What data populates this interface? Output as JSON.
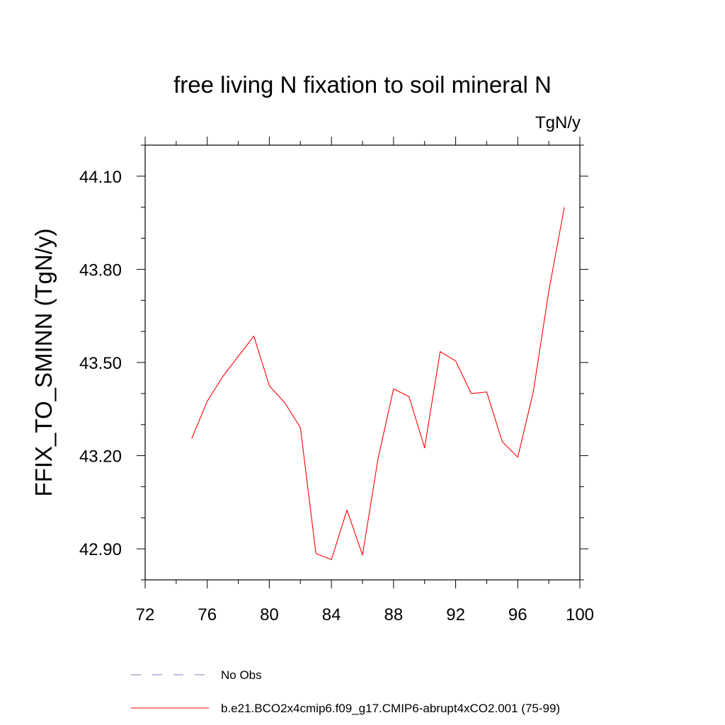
{
  "chart_data": {
    "type": "line",
    "title": "free living N fixation to soil mineral N",
    "units_label": "TgN/y",
    "ylabel": "FFIX_TO_SMINN  (TgN/y)",
    "xlabel": "",
    "xlim": [
      72,
      100
    ],
    "ylim": [
      42.8,
      44.2
    ],
    "x_ticks": [
      72,
      76,
      80,
      84,
      88,
      92,
      96,
      100
    ],
    "x_tick_labels": [
      "72",
      "76",
      "80",
      "84",
      "88",
      "92",
      "96",
      "100"
    ],
    "y_ticks": [
      42.9,
      43.2,
      43.5,
      43.8,
      44.1
    ],
    "y_tick_labels": [
      "42.90",
      "43.20",
      "43.50",
      "43.80",
      "44.10"
    ],
    "grid": false,
    "legend_position": "bottom-left",
    "series": [
      {
        "name": "b.e21.BCO2x4cmip6.f09_g17.CMIP6-abrupt4xCO2.001 (75-99)",
        "color": "#ff0000",
        "style": "solid",
        "x": [
          75,
          76,
          77,
          78,
          79,
          80,
          81,
          82,
          83,
          84,
          85,
          86,
          87,
          88,
          89,
          90,
          91,
          92,
          93,
          94,
          95,
          96,
          97,
          98,
          99
        ],
        "y": [
          43.255,
          43.375,
          43.455,
          43.52,
          43.585,
          43.425,
          43.37,
          43.29,
          42.885,
          42.865,
          43.025,
          42.88,
          43.19,
          43.415,
          43.39,
          43.225,
          43.535,
          43.505,
          43.4,
          43.405,
          43.245,
          43.195,
          43.405,
          43.73,
          44.0
        ]
      }
    ],
    "legend": [
      {
        "label": "No Obs",
        "color": "#8080c0",
        "style": "dashed"
      },
      {
        "label": "b.e21.BCO2x4cmip6.f09_g17.CMIP6-abrupt4xCO2.001 (75-99)",
        "color": "#ff0000",
        "style": "solid"
      }
    ]
  }
}
